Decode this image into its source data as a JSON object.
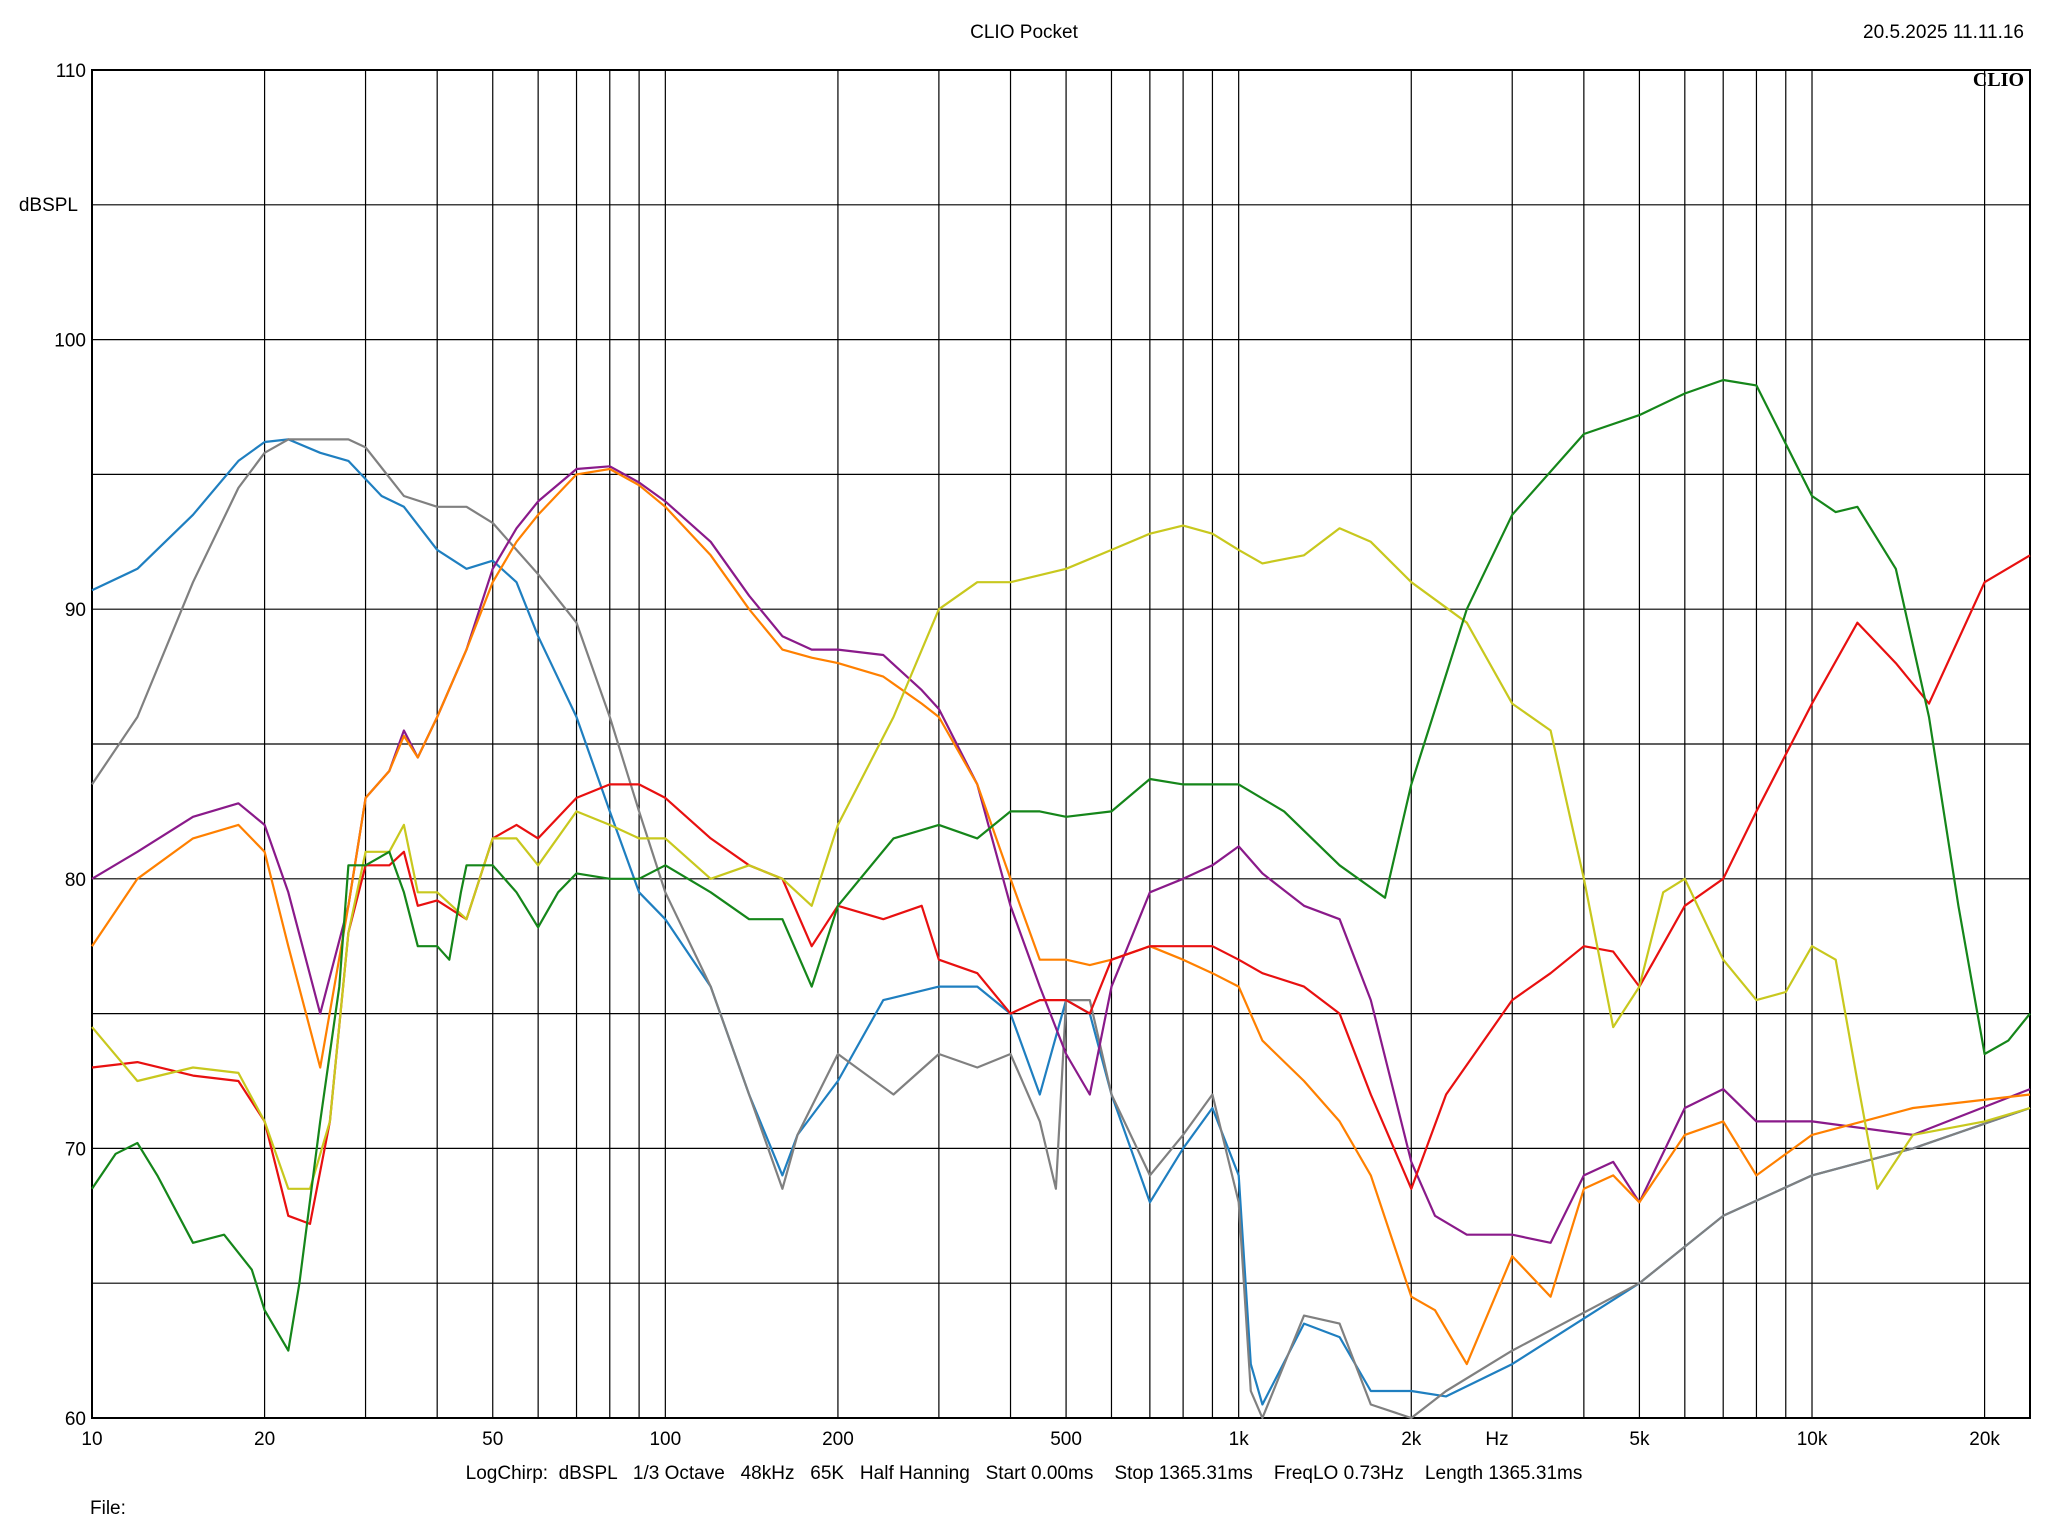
{
  "title": "CLIO Pocket",
  "datetime": "20.5.2025 11.11.16",
  "logo": "CLIO",
  "parameters": "LogChirp:  dBSPL   1/3 Octave   48kHz   65K   Half Hanning   Start 0.00ms    Stop 1365.31ms    FreqLO 0.73Hz    Length 1365.31ms",
  "file_label": "File:",
  "chart_data": {
    "type": "line",
    "title": "CLIO Pocket",
    "xlabel": "Hz",
    "ylabel": "dBSPL",
    "xscale": "log",
    "xlim": [
      10,
      24000
    ],
    "ylim": [
      60,
      110
    ],
    "grid": true,
    "legend": "none",
    "x_ticks": [
      10,
      20,
      50,
      100,
      200,
      500,
      1000,
      2000,
      5000,
      10000,
      20000
    ],
    "x_tick_labels": [
      "10",
      "20",
      "50",
      "100",
      "200",
      "500",
      "1k",
      "2k",
      "5k",
      "10k",
      "20k"
    ],
    "y_ticks": [
      60,
      70,
      80,
      90,
      100,
      110
    ],
    "y_tick_labels": [
      "60",
      "70",
      "80",
      "90",
      "100",
      "110"
    ],
    "series": [
      {
        "color": "#1f7fc0",
        "x": [
          10,
          12,
          15,
          18,
          20,
          22,
          25,
          28,
          32,
          35,
          40,
          45,
          50,
          55,
          60,
          70,
          80,
          90,
          100,
          120,
          140,
          160,
          170,
          200,
          240,
          300,
          350,
          400,
          450,
          500,
          550,
          600,
          700,
          800,
          900,
          1000,
          1050,
          1100,
          1300,
          1500,
          1700,
          2000,
          2300,
          3000,
          5000,
          7000,
          10000,
          15000,
          24000
        ],
        "y": [
          90.7,
          91.5,
          93.5,
          95.5,
          96.2,
          96.3,
          95.8,
          95.5,
          94.2,
          93.8,
          92.2,
          91.5,
          91.8,
          91,
          89,
          86,
          82.5,
          79.5,
          78.5,
          76,
          72,
          69,
          70.5,
          72.5,
          75.5,
          76,
          76,
          75,
          72,
          75.5,
          75,
          72,
          68,
          70,
          71.5,
          69,
          62,
          60.5,
          63.5,
          63,
          61,
          61,
          60.8,
          62,
          65,
          67.5,
          69,
          70,
          71.5
        ]
      },
      {
        "color": "#808080",
        "x": [
          10,
          12,
          15,
          18,
          20,
          22,
          25,
          28,
          30,
          35,
          40,
          45,
          50,
          55,
          60,
          70,
          80,
          90,
          100,
          120,
          140,
          160,
          170,
          200,
          250,
          300,
          350,
          400,
          450,
          480,
          500,
          550,
          600,
          700,
          800,
          900,
          1000,
          1050,
          1100,
          1300,
          1500,
          1700,
          2000,
          2300,
          3000,
          5000,
          7000,
          10000,
          15000,
          24000
        ],
        "y": [
          83.5,
          86,
          91,
          94.5,
          95.8,
          96.3,
          96.3,
          96.3,
          96,
          94.2,
          93.8,
          93.8,
          93.2,
          92.2,
          91.3,
          89.5,
          86,
          82.5,
          79.5,
          76,
          72,
          68.5,
          70.5,
          73.5,
          72,
          73.5,
          73,
          73.5,
          71,
          68.5,
          75.5,
          75.5,
          72,
          69,
          70.5,
          72,
          68,
          61,
          60,
          63.8,
          63.5,
          60.5,
          60,
          61,
          62.5,
          65,
          67.5,
          69,
          70,
          71.5
        ]
      },
      {
        "color": "#8a1a8a",
        "x": [
          10,
          12,
          15,
          18,
          20,
          22,
          25,
          28,
          30,
          33,
          35,
          37,
          40,
          45,
          50,
          55,
          60,
          70,
          80,
          90,
          100,
          120,
          140,
          160,
          180,
          200,
          240,
          280,
          300,
          350,
          400,
          450,
          500,
          550,
          600,
          700,
          800,
          900,
          1000,
          1100,
          1300,
          1500,
          1700,
          2000,
          2200,
          2500,
          3000,
          3500,
          4000,
          4500,
          5000,
          6000,
          7000,
          8000,
          10000,
          15000,
          24000
        ],
        "y": [
          80,
          81,
          82.3,
          82.8,
          82,
          79.5,
          75,
          79,
          83,
          84,
          85.5,
          84.5,
          86,
          88.5,
          91.5,
          93,
          94,
          95.2,
          95.3,
          94.7,
          94,
          92.5,
          90.5,
          89,
          88.5,
          88.5,
          88.3,
          87,
          86.3,
          83.5,
          79,
          76,
          73.5,
          72,
          76,
          79.5,
          80,
          80.5,
          81.2,
          80.2,
          79,
          78.5,
          75.5,
          69.5,
          67.5,
          66.8,
          66.8,
          66.5,
          69,
          69.5,
          68,
          71.5,
          72.2,
          71,
          71,
          70.5,
          72.2
        ]
      },
      {
        "color": "#ff8000",
        "x": [
          10,
          12,
          15,
          18,
          20,
          22,
          25,
          28,
          30,
          33,
          35,
          37,
          40,
          45,
          50,
          55,
          60,
          70,
          80,
          90,
          100,
          120,
          140,
          160,
          180,
          200,
          240,
          280,
          300,
          350,
          400,
          450,
          500,
          550,
          600,
          700,
          800,
          900,
          1000,
          1100,
          1300,
          1500,
          1700,
          2000,
          2200,
          2500,
          3000,
          3500,
          4000,
          4500,
          5000,
          6000,
          7000,
          8000,
          10000,
          15000,
          24000
        ],
        "y": [
          77.5,
          80,
          81.5,
          82,
          81,
          77.5,
          73,
          79,
          83,
          84,
          85.3,
          84.5,
          86,
          88.5,
          91,
          92.5,
          93.5,
          95,
          95.2,
          94.6,
          93.8,
          92,
          90,
          88.5,
          88.2,
          88,
          87.5,
          86.5,
          86,
          83.5,
          80,
          77,
          77,
          76.8,
          77,
          77.5,
          77,
          76.5,
          76,
          74,
          72.5,
          71,
          69,
          64.5,
          64,
          62,
          66,
          64.5,
          68.5,
          69,
          68,
          70.5,
          71,
          69,
          70.5,
          71.5,
          72
        ]
      },
      {
        "color": "#e81010",
        "x": [
          10,
          12,
          15,
          18,
          20,
          22,
          24,
          26,
          28,
          30,
          33,
          35,
          37,
          40,
          45,
          50,
          55,
          60,
          70,
          80,
          90,
          100,
          120,
          140,
          160,
          180,
          200,
          240,
          280,
          300,
          350,
          400,
          450,
          500,
          550,
          600,
          700,
          800,
          900,
          1000,
          1100,
          1300,
          1500,
          1700,
          2000,
          2300,
          3000,
          3500,
          4000,
          4500,
          5000,
          6000,
          7000,
          8000,
          10000,
          12000,
          14000,
          16000,
          20000,
          24000
        ],
        "y": [
          73,
          73.2,
          72.7,
          72.5,
          71,
          67.5,
          67.2,
          71,
          78,
          80.5,
          80.5,
          81,
          79,
          79.2,
          78.5,
          81.5,
          82,
          81.5,
          83,
          83.5,
          83.5,
          83,
          81.5,
          80.5,
          80,
          77.5,
          79,
          78.5,
          79,
          77,
          76.5,
          75,
          75.5,
          75.5,
          75,
          77,
          77.5,
          77.5,
          77.5,
          77,
          76.5,
          76,
          75,
          72,
          68.5,
          72,
          75.5,
          76.5,
          77.5,
          77.3,
          76,
          79,
          80,
          82.5,
          86.5,
          89.5,
          88,
          86.5,
          91,
          92
        ]
      },
      {
        "color": "#c8c81e",
        "x": [
          10,
          12,
          15,
          18,
          20,
          22,
          24,
          26,
          28,
          30,
          33,
          35,
          37,
          40,
          45,
          50,
          55,
          60,
          70,
          80,
          90,
          100,
          120,
          140,
          160,
          180,
          200,
          250,
          300,
          350,
          400,
          500,
          600,
          700,
          800,
          900,
          1000,
          1100,
          1300,
          1500,
          1700,
          2000,
          2500,
          3000,
          3500,
          4000,
          4500,
          5000,
          5500,
          6000,
          7000,
          8000,
          9000,
          10000,
          11000,
          12000,
          13000,
          15000,
          20000,
          24000
        ],
        "y": [
          74.5,
          72.5,
          73,
          72.8,
          71,
          68.5,
          68.5,
          71,
          78,
          81,
          81,
          82,
          79.5,
          79.5,
          78.5,
          81.5,
          81.5,
          80.5,
          82.5,
          82,
          81.5,
          81.5,
          80,
          80.5,
          80,
          79,
          82,
          86,
          90,
          91,
          91,
          91.5,
          92.2,
          92.8,
          93.1,
          92.8,
          92.2,
          91.7,
          92,
          93,
          92.5,
          91,
          89.5,
          86.5,
          85.5,
          80,
          74.5,
          76,
          79.5,
          80,
          77,
          75.5,
          75.8,
          77.5,
          77,
          72.5,
          68.5,
          70.5,
          71,
          71.5
        ]
      },
      {
        "color": "#15861a",
        "x": [
          10,
          11,
          12,
          13,
          15,
          17,
          19,
          20,
          22,
          23,
          25,
          27,
          28,
          30,
          33,
          35,
          37,
          40,
          42,
          44,
          45,
          50,
          55,
          60,
          65,
          70,
          80,
          90,
          100,
          120,
          140,
          160,
          180,
          200,
          250,
          300,
          350,
          400,
          450,
          500,
          600,
          700,
          800,
          900,
          1000,
          1200,
          1500,
          1800,
          2000,
          2500,
          3000,
          4000,
          5000,
          6000,
          7000,
          8000,
          10000,
          11000,
          12000,
          14000,
          16000,
          18000,
          20000,
          22000,
          24000
        ],
        "y": [
          68.5,
          69.8,
          70.2,
          69,
          66.5,
          66.8,
          65.5,
          64,
          62.5,
          65,
          71,
          76,
          80.5,
          80.5,
          81,
          79.5,
          77.5,
          77.5,
          77,
          79.5,
          80.5,
          80.5,
          79.5,
          78.2,
          79.5,
          80.2,
          80,
          80,
          80.5,
          79.5,
          78.5,
          78.5,
          76,
          79,
          81.5,
          82,
          81.5,
          82.5,
          82.5,
          82.3,
          82.5,
          83.7,
          83.5,
          83.5,
          83.5,
          82.5,
          80.5,
          79.3,
          83.5,
          90,
          93.5,
          96.5,
          97.2,
          98,
          98.5,
          98.3,
          94.2,
          93.6,
          93.8,
          91.5,
          86,
          79,
          73.5,
          74,
          75
        ]
      }
    ]
  }
}
